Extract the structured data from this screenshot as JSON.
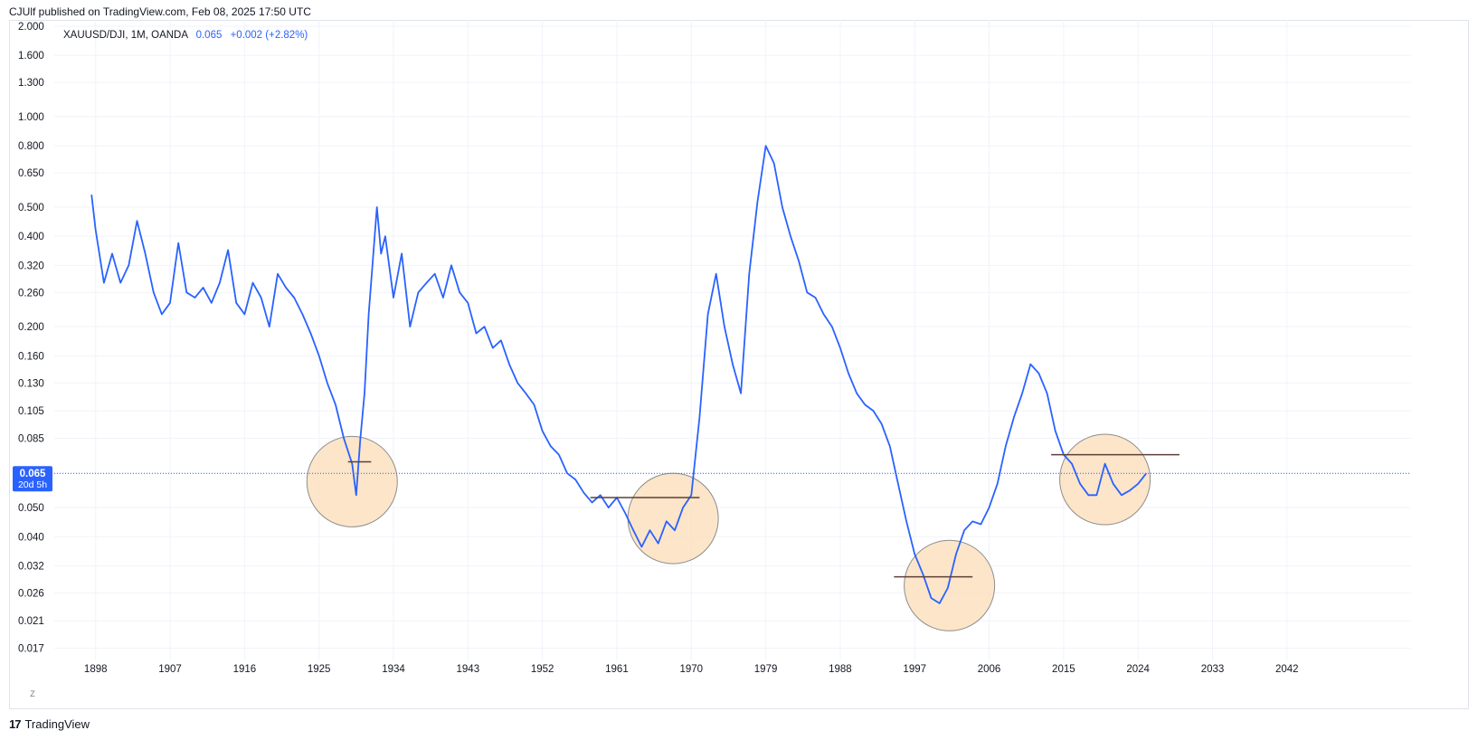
{
  "header": {
    "published": "CJUlf published on TradingView.com, Feb 08, 2025 17:50 UTC"
  },
  "legend": {
    "symbol": "XAUUSD/DJI, 1M, OANDA",
    "value": "0.065",
    "change": "+0.002 (+2.82%)"
  },
  "price_label": {
    "value": "0.065",
    "countdown": "20d 5h"
  },
  "footer": {
    "brand": "TradingView",
    "logo_text": "17"
  },
  "z_button": "Z",
  "colors": {
    "line": "#2962ff",
    "circle_fill": "#fbe1bf",
    "circle_stroke": "#8d8d8d",
    "hline": "#5d4037",
    "grid": "#f0f3fa"
  },
  "chart_data": {
    "type": "line",
    "scale": "log",
    "series": [
      {
        "x": [
          1897.5,
          1898,
          1899,
          1900,
          1901,
          1902,
          1903,
          1904,
          1905,
          1906,
          1907,
          1908,
          1909,
          1910,
          1911,
          1912,
          1913,
          1914,
          1915,
          1916,
          1917,
          1918,
          1919,
          1920,
          1921,
          1922,
          1923,
          1924,
          1925,
          1926,
          1927,
          1928,
          1929,
          1929.5,
          1930,
          1930.5,
          1931,
          1932,
          1932.5,
          1933,
          1934,
          1935,
          1936,
          1937,
          1938,
          1939,
          1940,
          1941,
          1942,
          1943,
          1944,
          1945,
          1946,
          1947,
          1948,
          1949,
          1950,
          1951,
          1952,
          1953,
          1954,
          1955,
          1956,
          1957,
          1958,
          1959,
          1960,
          1961,
          1962,
          1963,
          1964,
          1965,
          1966,
          1967,
          1968,
          1969,
          1970,
          1971,
          1972,
          1973,
          1974,
          1975,
          1976,
          1977,
          1978,
          1979,
          1980,
          1981,
          1982,
          1983,
          1984,
          1985,
          1986,
          1987,
          1988,
          1989,
          1990,
          1991,
          1992,
          1993,
          1994,
          1995,
          1996,
          1997,
          1998,
          1999,
          2000,
          2001,
          2002,
          2003,
          2004,
          2005,
          2006,
          2007,
          2008,
          2009,
          2010,
          2011,
          2012,
          2013,
          2014,
          2015,
          2016,
          2017,
          2018,
          2019,
          2020,
          2021,
          2022,
          2023,
          2024,
          2025
        ],
        "y": [
          0.55,
          0.42,
          0.28,
          0.35,
          0.28,
          0.32,
          0.45,
          0.35,
          0.26,
          0.22,
          0.24,
          0.38,
          0.26,
          0.25,
          0.27,
          0.24,
          0.28,
          0.36,
          0.24,
          0.22,
          0.28,
          0.25,
          0.2,
          0.3,
          0.27,
          0.25,
          0.22,
          0.19,
          0.16,
          0.13,
          0.11,
          0.085,
          0.07,
          0.055,
          0.085,
          0.12,
          0.22,
          0.5,
          0.35,
          0.4,
          0.25,
          0.35,
          0.2,
          0.26,
          0.28,
          0.3,
          0.25,
          0.32,
          0.26,
          0.24,
          0.19,
          0.2,
          0.17,
          0.18,
          0.15,
          0.13,
          0.12,
          0.11,
          0.09,
          0.08,
          0.075,
          0.065,
          0.062,
          0.056,
          0.052,
          0.055,
          0.05,
          0.054,
          0.048,
          0.042,
          0.037,
          0.042,
          0.038,
          0.045,
          0.042,
          0.05,
          0.055,
          0.1,
          0.22,
          0.3,
          0.2,
          0.15,
          0.12,
          0.3,
          0.52,
          0.8,
          0.7,
          0.5,
          0.4,
          0.33,
          0.26,
          0.25,
          0.22,
          0.2,
          0.17,
          0.14,
          0.12,
          0.11,
          0.105,
          0.095,
          0.08,
          0.06,
          0.045,
          0.035,
          0.03,
          0.025,
          0.024,
          0.027,
          0.035,
          0.042,
          0.045,
          0.044,
          0.05,
          0.06,
          0.08,
          0.1,
          0.12,
          0.15,
          0.14,
          0.12,
          0.09,
          0.075,
          0.07,
          0.06,
          0.055,
          0.055,
          0.07,
          0.06,
          0.055,
          0.057,
          0.06,
          0.065
        ]
      }
    ],
    "y_ticks": [
      "2.000",
      "1.600",
      "1.300",
      "1.000",
      "0.800",
      "0.650",
      "0.500",
      "0.400",
      "0.320",
      "0.260",
      "0.200",
      "0.160",
      "0.130",
      "0.105",
      "0.085",
      "0.065",
      "0.050",
      "0.040",
      "0.032",
      "0.026",
      "0.021",
      "0.017"
    ],
    "x_ticks": [
      "1898",
      "1907",
      "1916",
      "1925",
      "1934",
      "1943",
      "1952",
      "1961",
      "1970",
      "1979",
      "1988",
      "1997",
      "2006",
      "2015",
      "2024",
      "2033",
      "2042"
    ],
    "x_range": [
      1893,
      2057
    ],
    "y_range": [
      0.0155,
      2.1
    ],
    "last_price": 0.065,
    "annotations": {
      "circles": [
        {
          "x": 1929.0,
          "y": 0.061
        },
        {
          "x": 1967.8,
          "y": 0.046
        },
        {
          "x": 2001.2,
          "y": 0.0275
        },
        {
          "x": 2020.0,
          "y": 0.062
        }
      ],
      "hlines": [
        {
          "x1": 1928.5,
          "x2": 1931.3,
          "y": 0.071
        },
        {
          "x1": 1957.8,
          "x2": 1971.0,
          "y": 0.054
        },
        {
          "x1": 1994.5,
          "x2": 2004.0,
          "y": 0.0294
        },
        {
          "x1": 2013.5,
          "x2": 2029.0,
          "y": 0.075
        }
      ]
    }
  }
}
